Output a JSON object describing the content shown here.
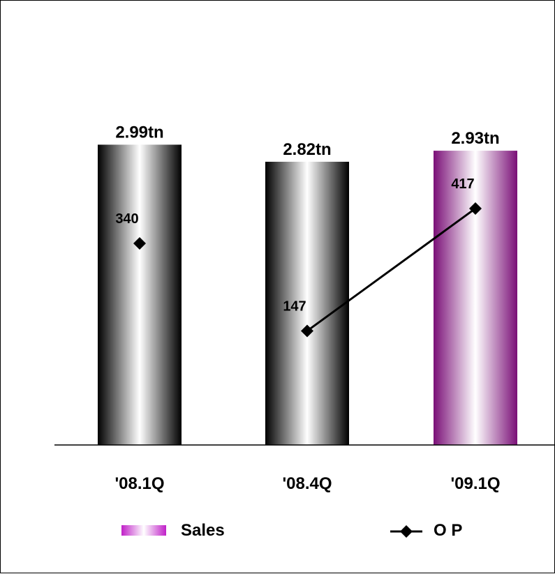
{
  "chart_data": {
    "type": "bar",
    "categories": [
      "'08.1Q",
      "'08.4Q",
      "'09.1Q"
    ],
    "series": [
      {
        "name": "Sales",
        "kind": "bar",
        "values": [
          2.99,
          2.82,
          2.93
        ],
        "labels": [
          "2.99tn",
          "2.82tn",
          "2.93tn"
        ],
        "colors": [
          "#000000",
          "#000000",
          "#7a0f77"
        ],
        "highlight_index": 2
      },
      {
        "name": "O P",
        "kind": "line",
        "values": [
          340,
          147,
          417
        ],
        "labels": [
          "340",
          "147",
          "417"
        ],
        "connected_from_index": 1,
        "color": "#000000",
        "marker": "diamond"
      }
    ],
    "legend": {
      "placement": "bottom",
      "items": [
        {
          "label": "Sales",
          "swatch_color": "#c020c8"
        },
        {
          "label": "O P",
          "marker": "diamond"
        }
      ]
    },
    "axes": {
      "sales_ylim": [
        0,
        3.3
      ],
      "op_ylim": [
        0,
        600
      ]
    },
    "grid": false
  }
}
